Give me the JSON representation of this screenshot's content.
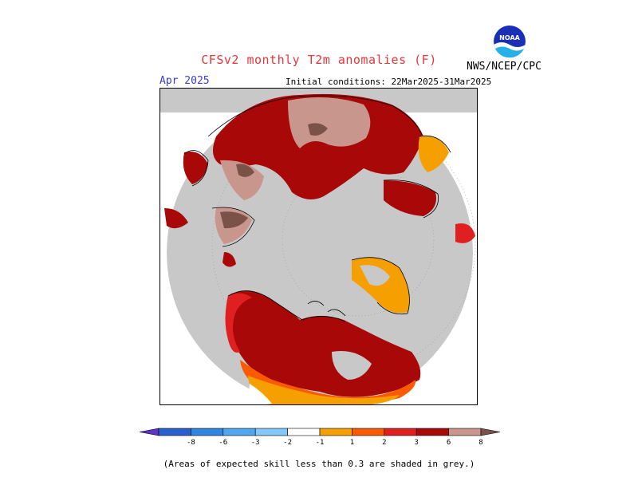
{
  "header": {
    "title": "CFSv2 monthly T2m anomalies (F)",
    "agency": "NWS/NCEP/CPC",
    "logo_text": "NOAA",
    "month": "Apr 2025",
    "initial_conditions": "Initial conditions: 22Mar2025-31Mar2025"
  },
  "colors": {
    "title": "#e8353a",
    "month": "#3a3ae0",
    "grey_skill": "#c8c8c8",
    "coast": "#000000"
  },
  "colorbar": {
    "tick_labels": [
      "-8",
      "-6",
      "-3",
      "-2",
      "-1",
      "1",
      "2",
      "3",
      "6",
      "8"
    ],
    "bins": [
      {
        "color": "#5b35c8"
      },
      {
        "color": "#2b5fd0"
      },
      {
        "color": "#2f86e0"
      },
      {
        "color": "#52a6f0"
      },
      {
        "color": "#84c8f8"
      },
      {
        "color": "#ffffff"
      },
      {
        "color": "#f5a000"
      },
      {
        "color": "#fb5b00"
      },
      {
        "color": "#e02020"
      },
      {
        "color": "#a80808"
      },
      {
        "color": "#c8968c"
      },
      {
        "color": "#7a5248"
      }
    ]
  },
  "footnote": "(Areas of expected skill less than 0.3 are shaded in grey.)"
}
